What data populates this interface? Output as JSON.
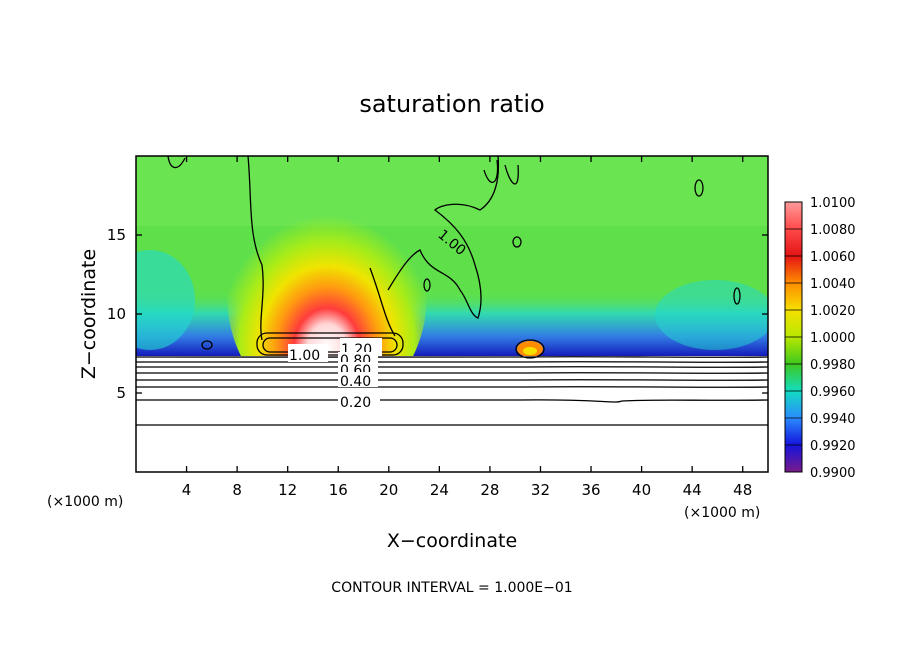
{
  "chart_data": {
    "type": "heatmap",
    "title": "saturation ratio",
    "xlabel": "X−coordinate",
    "ylabel": "Z−coordinate",
    "x_unit": "(×1000 m)",
    "x_unit_right": "(×1000 m)",
    "xlim": [
      0,
      50
    ],
    "ylim": [
      0,
      20
    ],
    "x_ticks": [
      4,
      8,
      12,
      16,
      20,
      24,
      28,
      32,
      36,
      40,
      44,
      48
    ],
    "y_ticks": [
      5,
      10,
      15
    ],
    "footer": "CONTOUR INTERVAL = 1.000E−01",
    "colorbar": {
      "levels": [
        "1.0100",
        "1.0080",
        "1.0060",
        "1.0040",
        "1.0020",
        "1.0000",
        "0.9980",
        "0.9960",
        "0.9940",
        "0.9920",
        "0.9900"
      ],
      "colors": [
        "#ff9a9a",
        "#ff4a4a",
        "#e41414",
        "#ff8c00",
        "#f5e000",
        "#b8e800",
        "#3ec81e",
        "#12dcc0",
        "#2a8cff",
        "#1414dc",
        "#7a1a8a"
      ]
    },
    "field_regions": {
      "background": {
        "value": 0.9985,
        "color": "#5fe04a"
      },
      "moist_plume": {
        "center_x": 15,
        "peak_z": 11,
        "max_value": 1.012
      },
      "dry_band": {
        "z_range": [
          7.5,
          10
        ],
        "min_value": 0.991
      },
      "secondary_cell": {
        "center_x": 31.5,
        "z": 8,
        "max_value": 1.005
      },
      "below_layer_top": 7.3
    },
    "contours": [
      {
        "label": "1.00",
        "z_level": 8.0
      },
      {
        "label": "1.20",
        "z_level": 8.0
      },
      {
        "label": "0.80",
        "z_level": 7.6
      },
      {
        "label": "0.60",
        "z_level": 7.2
      },
      {
        "label": "0.40",
        "z_level": 6.3
      },
      {
        "label": "0.20",
        "z_level": 4.7
      },
      {
        "label": "1.00",
        "z_level": 14.7
      }
    ]
  }
}
